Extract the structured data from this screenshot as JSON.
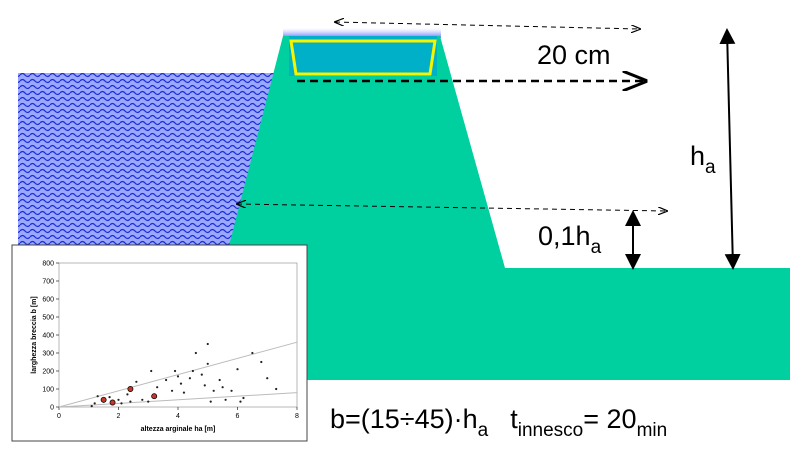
{
  "labels": {
    "top_gap": "20 cm",
    "height": {
      "main": "h",
      "sub": "a"
    },
    "lower": {
      "main": "0,1h",
      "sub": "a"
    }
  },
  "formula": {
    "b": "b=(15÷45)·h",
    "b_sub": "a",
    "t": "t",
    "t_sub": "innesco",
    "eq": "= 20",
    "eq_sub": "min"
  },
  "chart_data": {
    "type": "scatter",
    "xlabel": "altezza arginale ha [m]",
    "ylabel": "larghezza breccia  b [m]",
    "xlim": [
      0,
      8
    ],
    "ylim": [
      0,
      800
    ],
    "xticks": [
      0,
      2,
      4,
      6,
      8
    ],
    "yticks": [
      0,
      100,
      200,
      300,
      400,
      500,
      600,
      700,
      800
    ],
    "series": [
      {
        "color": "#222222",
        "x": [
          1.2,
          1.3,
          1.5,
          1.7,
          2.0,
          2.1,
          2.3,
          2.6,
          2.8,
          3.0,
          3.1,
          3.3,
          3.6,
          3.8,
          3.9,
          4.1,
          4.2,
          4.4,
          4.5,
          4.6,
          4.8,
          4.9,
          5.0,
          5.0,
          5.1,
          5.2,
          5.4,
          5.6,
          5.8,
          6.0,
          6.2,
          6.5,
          6.8,
          7.0,
          7.3,
          1.1,
          2.4,
          4.0,
          5.5,
          6.1
        ],
        "values": [
          20,
          60,
          30,
          55,
          40,
          20,
          70,
          140,
          40,
          30,
          200,
          110,
          150,
          90,
          200,
          130,
          80,
          160,
          200,
          300,
          180,
          120,
          350,
          240,
          30,
          90,
          150,
          40,
          90,
          210,
          50,
          300,
          250,
          160,
          100,
          5,
          30,
          170,
          110,
          30
        ]
      },
      {
        "color": "#c0392b",
        "x": [
          1.5,
          1.8,
          2.4,
          3.2
        ],
        "values": [
          40,
          25,
          100,
          60
        ]
      }
    ],
    "lines": [
      {
        "color": "#bbbbbb",
        "x": [
          0,
          8
        ],
        "values": [
          0,
          360
        ]
      },
      {
        "color": "#bbbbbb",
        "x": [
          0,
          8
        ],
        "values": [
          0,
          80
        ]
      }
    ]
  }
}
